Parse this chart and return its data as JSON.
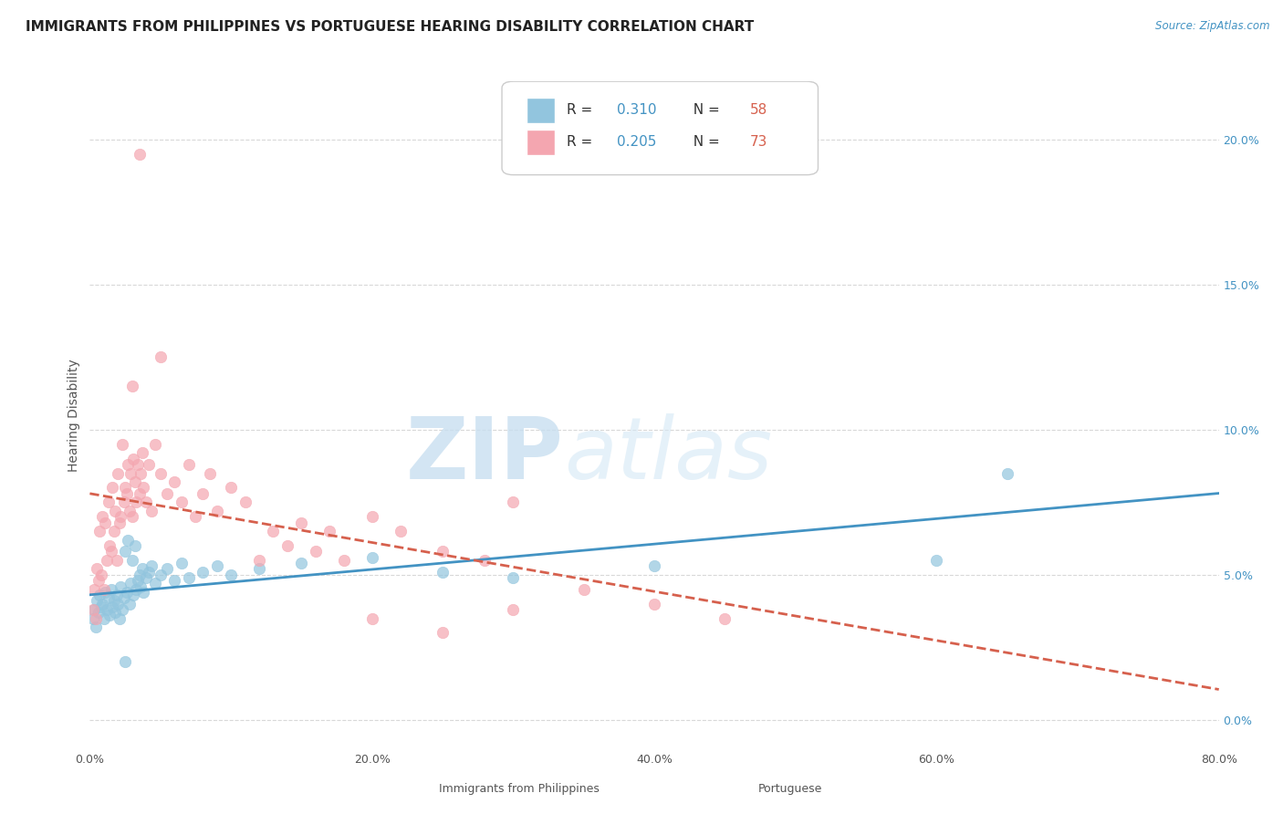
{
  "title": "IMMIGRANTS FROM PHILIPPINES VS PORTUGUESE HEARING DISABILITY CORRELATION CHART",
  "source": "Source: ZipAtlas.com",
  "ylabel": "Hearing Disability",
  "watermark_zip": "ZIP",
  "watermark_atlas": "atlas",
  "xlim": [
    0.0,
    80.0
  ],
  "ylim": [
    -1.0,
    22.0
  ],
  "yticks": [
    0.0,
    5.0,
    10.0,
    15.0,
    20.0
  ],
  "xticks": [
    0.0,
    20.0,
    40.0,
    60.0,
    80.0
  ],
  "philippines_color": "#92c5de",
  "portuguese_color": "#f4a6b0",
  "philippines_line_color": "#4393c3",
  "portuguese_line_color": "#d6604d",
  "philippines_R": 0.31,
  "philippines_N": 58,
  "portuguese_R": 0.205,
  "portuguese_N": 73,
  "philippines_points": [
    [
      0.2,
      3.5
    ],
    [
      0.3,
      3.8
    ],
    [
      0.4,
      3.2
    ],
    [
      0.5,
      4.1
    ],
    [
      0.6,
      3.7
    ],
    [
      0.7,
      4.3
    ],
    [
      0.8,
      3.9
    ],
    [
      0.9,
      4.0
    ],
    [
      1.0,
      3.5
    ],
    [
      1.1,
      4.4
    ],
    [
      1.2,
      3.8
    ],
    [
      1.3,
      4.2
    ],
    [
      1.4,
      3.6
    ],
    [
      1.5,
      4.5
    ],
    [
      1.6,
      3.9
    ],
    [
      1.7,
      4.1
    ],
    [
      1.8,
      3.7
    ],
    [
      1.9,
      4.3
    ],
    [
      2.0,
      4.0
    ],
    [
      2.1,
      3.5
    ],
    [
      2.2,
      4.6
    ],
    [
      2.3,
      3.8
    ],
    [
      2.4,
      4.2
    ],
    [
      2.5,
      5.8
    ],
    [
      2.6,
      4.4
    ],
    [
      2.7,
      6.2
    ],
    [
      2.8,
      4.0
    ],
    [
      2.9,
      4.7
    ],
    [
      3.0,
      5.5
    ],
    [
      3.1,
      4.3
    ],
    [
      3.2,
      6.0
    ],
    [
      3.3,
      4.5
    ],
    [
      3.4,
      4.8
    ],
    [
      3.5,
      5.0
    ],
    [
      3.6,
      4.6
    ],
    [
      3.7,
      5.2
    ],
    [
      3.8,
      4.4
    ],
    [
      4.0,
      4.9
    ],
    [
      4.2,
      5.1
    ],
    [
      4.4,
      5.3
    ],
    [
      4.6,
      4.7
    ],
    [
      5.0,
      5.0
    ],
    [
      5.5,
      5.2
    ],
    [
      6.0,
      4.8
    ],
    [
      6.5,
      5.4
    ],
    [
      7.0,
      4.9
    ],
    [
      8.0,
      5.1
    ],
    [
      9.0,
      5.3
    ],
    [
      10.0,
      5.0
    ],
    [
      12.0,
      5.2
    ],
    [
      15.0,
      5.4
    ],
    [
      20.0,
      5.6
    ],
    [
      25.0,
      5.1
    ],
    [
      30.0,
      4.9
    ],
    [
      40.0,
      5.3
    ],
    [
      60.0,
      5.5
    ],
    [
      65.0,
      8.5
    ],
    [
      2.5,
      2.0
    ]
  ],
  "portuguese_points": [
    [
      0.2,
      3.8
    ],
    [
      0.3,
      4.5
    ],
    [
      0.4,
      3.5
    ],
    [
      0.5,
      5.2
    ],
    [
      0.6,
      4.8
    ],
    [
      0.7,
      6.5
    ],
    [
      0.8,
      5.0
    ],
    [
      0.9,
      7.0
    ],
    [
      1.0,
      4.5
    ],
    [
      1.1,
      6.8
    ],
    [
      1.2,
      5.5
    ],
    [
      1.3,
      7.5
    ],
    [
      1.4,
      6.0
    ],
    [
      1.5,
      5.8
    ],
    [
      1.6,
      8.0
    ],
    [
      1.7,
      6.5
    ],
    [
      1.8,
      7.2
    ],
    [
      1.9,
      5.5
    ],
    [
      2.0,
      8.5
    ],
    [
      2.1,
      6.8
    ],
    [
      2.2,
      7.0
    ],
    [
      2.3,
      9.5
    ],
    [
      2.4,
      7.5
    ],
    [
      2.5,
      8.0
    ],
    [
      2.6,
      7.8
    ],
    [
      2.7,
      8.8
    ],
    [
      2.8,
      7.2
    ],
    [
      2.9,
      8.5
    ],
    [
      3.0,
      7.0
    ],
    [
      3.1,
      9.0
    ],
    [
      3.2,
      8.2
    ],
    [
      3.3,
      7.5
    ],
    [
      3.4,
      8.8
    ],
    [
      3.5,
      7.8
    ],
    [
      3.6,
      8.5
    ],
    [
      3.7,
      9.2
    ],
    [
      3.8,
      8.0
    ],
    [
      4.0,
      7.5
    ],
    [
      4.2,
      8.8
    ],
    [
      4.4,
      7.2
    ],
    [
      4.6,
      9.5
    ],
    [
      5.0,
      8.5
    ],
    [
      5.5,
      7.8
    ],
    [
      6.0,
      8.2
    ],
    [
      6.5,
      7.5
    ],
    [
      7.0,
      8.8
    ],
    [
      7.5,
      7.0
    ],
    [
      8.0,
      7.8
    ],
    [
      8.5,
      8.5
    ],
    [
      9.0,
      7.2
    ],
    [
      10.0,
      8.0
    ],
    [
      11.0,
      7.5
    ],
    [
      12.0,
      5.5
    ],
    [
      13.0,
      6.5
    ],
    [
      14.0,
      6.0
    ],
    [
      15.0,
      6.8
    ],
    [
      16.0,
      5.8
    ],
    [
      17.0,
      6.5
    ],
    [
      18.0,
      5.5
    ],
    [
      20.0,
      7.0
    ],
    [
      22.0,
      6.5
    ],
    [
      25.0,
      5.8
    ],
    [
      28.0,
      5.5
    ],
    [
      30.0,
      7.5
    ],
    [
      3.5,
      19.5
    ],
    [
      5.0,
      12.5
    ],
    [
      3.0,
      11.5
    ],
    [
      20.0,
      3.5
    ],
    [
      25.0,
      3.0
    ],
    [
      30.0,
      3.8
    ],
    [
      35.0,
      4.5
    ],
    [
      40.0,
      4.0
    ],
    [
      45.0,
      3.5
    ]
  ],
  "background_color": "#ffffff",
  "grid_color": "#d8d8d8",
  "right_yaxis_color": "#4393c3",
  "legend_R_color_blue": "#4393c3",
  "legend_N_color_blue": "#d6604d",
  "title_fontsize": 11,
  "legend_fontsize": 11,
  "axis_label_fontsize": 10
}
